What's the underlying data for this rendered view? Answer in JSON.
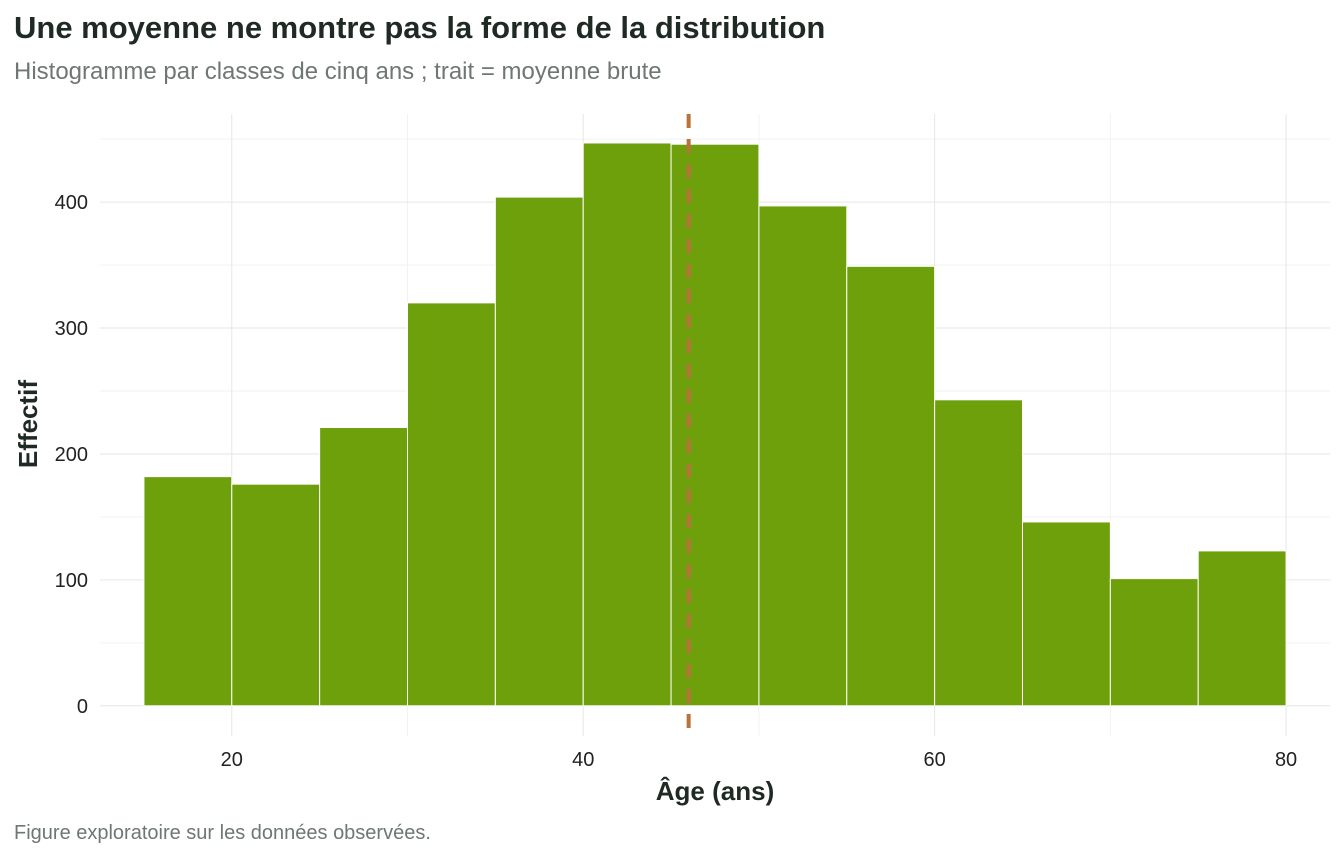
{
  "title": "Une moyenne ne montre pas la forme de la distribution",
  "subtitle": "Histogramme par classes de cinq ans ; trait = moyenne brute",
  "caption": "Figure exploratoire sur les données observées.",
  "colors": {
    "bar": "#6ea00b",
    "bar_edge": "#ffffff",
    "mean_line": "#b8733b",
    "grid": "#e6e6e6"
  },
  "chart_data": {
    "type": "bar",
    "title": "Une moyenne ne montre pas la forme de la distribution",
    "subtitle": "Histogramme par classes de cinq ans ; trait = moyenne brute",
    "xlabel": "Âge (ans)",
    "ylabel": "Effectif",
    "bin_width": 5,
    "bins": [
      {
        "start": 15,
        "end": 20,
        "count": 182
      },
      {
        "start": 20,
        "end": 25,
        "count": 176
      },
      {
        "start": 25,
        "end": 30,
        "count": 221
      },
      {
        "start": 30,
        "end": 35,
        "count": 320
      },
      {
        "start": 35,
        "end": 40,
        "count": 404
      },
      {
        "start": 40,
        "end": 45,
        "count": 447
      },
      {
        "start": 45,
        "end": 50,
        "count": 446
      },
      {
        "start": 50,
        "end": 55,
        "count": 397
      },
      {
        "start": 55,
        "end": 60,
        "count": 349
      },
      {
        "start": 60,
        "end": 65,
        "count": 243
      },
      {
        "start": 65,
        "end": 70,
        "count": 146
      },
      {
        "start": 70,
        "end": 75,
        "count": 101
      },
      {
        "start": 75,
        "end": 80,
        "count": 123
      }
    ],
    "mean": 46,
    "xlim": [
      12.5,
      82.5
    ],
    "ylim": [
      -24,
      470
    ],
    "x_ticks": [
      20,
      40,
      60,
      80
    ],
    "y_ticks": [
      0,
      100,
      200,
      300,
      400
    ],
    "grid": true,
    "legend": "none"
  }
}
